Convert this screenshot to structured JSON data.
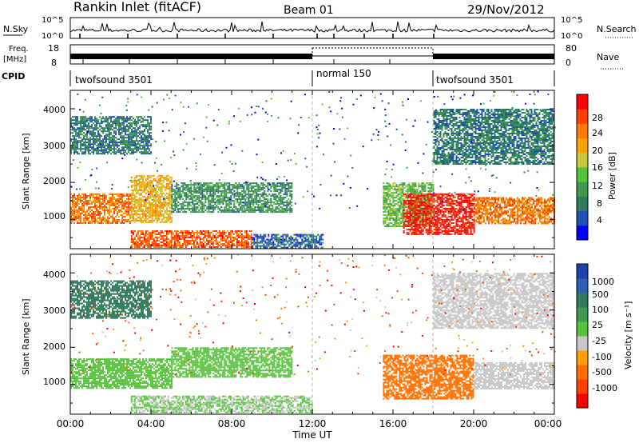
{
  "header": {
    "title": "Rankin Inlet (fitACF)",
    "beam": "Beam 01",
    "date": "29/Nov/2012"
  },
  "noise_panel": {
    "left_label": "N.Sky",
    "right_label": "N.Search",
    "left_ticks": [
      "10^5",
      "10^0"
    ],
    "right_ticks": [
      "10^5",
      "10^0"
    ]
  },
  "freq_panel": {
    "left_label_line1": "Freq.",
    "left_label_line2": "[MHz]",
    "right_label": "Nave",
    "left_ticks": [
      "18",
      "8"
    ],
    "right_ticks": [
      "80",
      "0"
    ]
  },
  "cpid": {
    "label": "CPID",
    "segments": [
      {
        "name": "twofsound 3501",
        "start_h": 0,
        "end_h": 12
      },
      {
        "name": "normal 150",
        "start_h": 12,
        "end_h": 18
      },
      {
        "name": "twofsound 3501",
        "start_h": 18,
        "end_h": 24
      }
    ]
  },
  "x_axis": {
    "label": "Time UT",
    "ticks": [
      "00:00",
      "04:00",
      "08:00",
      "12:00",
      "16:00",
      "20:00",
      "00:00"
    ]
  },
  "power_panel": {
    "ylabel": "Slant Range [km]",
    "yticks": [
      "1000",
      "2000",
      "3000",
      "4000"
    ],
    "colorbar_label": "Power [dB]",
    "colorbar_ticks": [
      "28",
      "24",
      "20",
      "16",
      "12",
      "8",
      "4"
    ],
    "colors": [
      "#0000ff",
      "#1e4fb4",
      "#2f7a5a",
      "#3f9a4f",
      "#55c43a",
      "#c8c83c",
      "#f7a300",
      "#ff7a00",
      "#ff4000",
      "#ff0000"
    ]
  },
  "velocity_panel": {
    "ylabel": "Slant Range [km]",
    "yticks": [
      "1000",
      "2000",
      "3000",
      "4000"
    ],
    "colorbar_label": "Velocity [m s⁻¹]",
    "colorbar_ticks": [
      "1000",
      "500",
      "100",
      "25",
      "-25",
      "-100",
      "-500",
      "-1000"
    ],
    "colors": [
      "#2040b0",
      "#2f5fb0",
      "#2f7a5a",
      "#3f9a4f",
      "#55c43a",
      "#c8c8c8",
      "#ffa000",
      "#ff7000",
      "#ff4000",
      "#ff0000"
    ]
  },
  "chart_data": [
    {
      "type": "heatmap",
      "title": "Power",
      "x": "time UT (hours)",
      "xlim": [
        0,
        24
      ],
      "ylabel": "Slant Range [km]",
      "ylim": [
        200,
        4500
      ],
      "value_label": "Power [dB]",
      "value_range": [
        0,
        32
      ],
      "regions": [
        {
          "t0": 0.0,
          "t1": 3.0,
          "r0": 900,
          "r1": 1700,
          "value": 24
        },
        {
          "t0": 3.0,
          "t1": 5.0,
          "r0": 900,
          "r1": 2200,
          "value": 20
        },
        {
          "t0": 5.0,
          "t1": 11.0,
          "r0": 1200,
          "r1": 2000,
          "value": 10
        },
        {
          "t0": 0.0,
          "t1": 4.0,
          "r0": 2800,
          "r1": 3800,
          "value": 8
        },
        {
          "t0": 3.0,
          "t1": 9.0,
          "r0": 250,
          "r1": 700,
          "value": 26
        },
        {
          "t0": 9.0,
          "t1": 12.5,
          "r0": 250,
          "r1": 600,
          "value": 6
        },
        {
          "t0": 15.5,
          "t1": 18.0,
          "r0": 800,
          "r1": 2000,
          "value": 14
        },
        {
          "t0": 16.5,
          "t1": 20.0,
          "r0": 600,
          "r1": 1700,
          "value": 30
        },
        {
          "t0": 20.0,
          "t1": 24.0,
          "r0": 900,
          "r1": 1600,
          "value": 24
        },
        {
          "t0": 18.0,
          "t1": 24.0,
          "r0": 2500,
          "r1": 4000,
          "value": 8
        }
      ]
    },
    {
      "type": "heatmap",
      "title": "Velocity",
      "x": "time UT (hours)",
      "xlim": [
        0,
        24
      ],
      "ylabel": "Slant Range [km]",
      "ylim": [
        200,
        4500
      ],
      "value_label": "Velocity [m s-1]",
      "value_range": [
        -1000,
        1000
      ],
      "regions": [
        {
          "t0": 0.0,
          "t1": 5.0,
          "r0": 900,
          "r1": 1700,
          "value": 100
        },
        {
          "t0": 5.0,
          "t1": 11.0,
          "r0": 1200,
          "r1": 2000,
          "value": 100
        },
        {
          "t0": 0.0,
          "t1": 4.0,
          "r0": 2800,
          "r1": 3800,
          "value": 500
        },
        {
          "t0": 3.0,
          "t1": 12.0,
          "r0": 250,
          "r1": 700,
          "value": 0
        },
        {
          "t0": 15.5,
          "t1": 20.0,
          "r0": 600,
          "r1": 1800,
          "value": -500
        },
        {
          "t0": 20.0,
          "t1": 24.0,
          "r0": 900,
          "r1": 1600,
          "value": -100
        },
        {
          "t0": 18.0,
          "t1": 24.0,
          "r0": 2500,
          "r1": 4000,
          "value": -100
        }
      ]
    }
  ]
}
